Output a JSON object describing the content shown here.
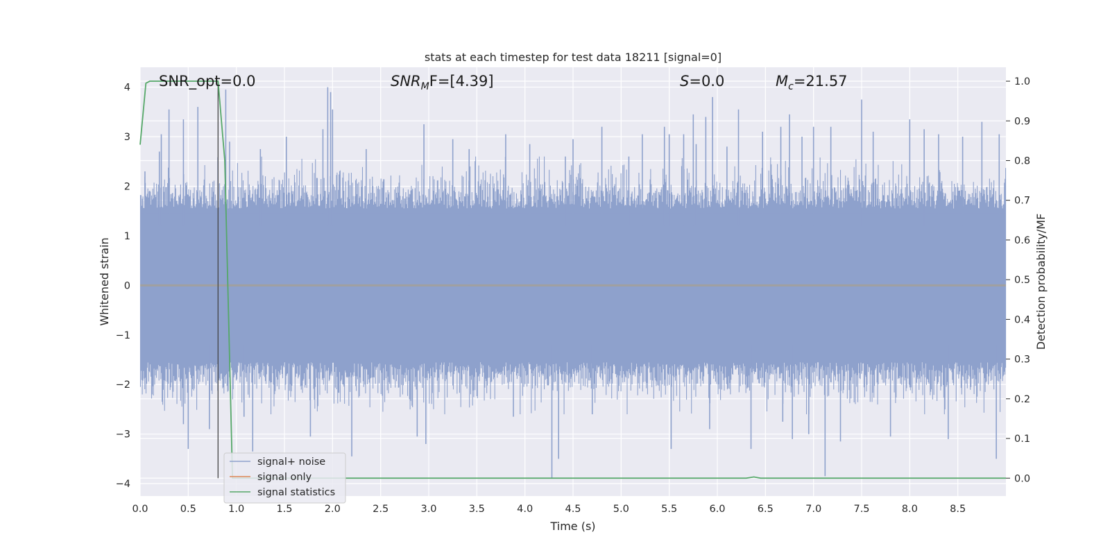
{
  "chart_data": {
    "type": "line",
    "title": "stats at each timestep for test data 18211 [signal=0]",
    "xlabel": "Time (s)",
    "ylabel": "Whitened strain",
    "ylabel_right": "Detection probability/MF",
    "xlim": [
      0.0,
      9.0
    ],
    "ylim": [
      -4.25,
      4.4
    ],
    "ylim_right": [
      -0.045,
      1.035
    ],
    "x_ticks": [
      "0.0",
      "0.5",
      "1.0",
      "1.5",
      "2.0",
      "2.5",
      "3.0",
      "3.5",
      "4.0",
      "4.5",
      "5.0",
      "5.5",
      "6.0",
      "6.5",
      "7.0",
      "7.5",
      "8.0",
      "8.5"
    ],
    "x_tick_values": [
      0.0,
      0.5,
      1.0,
      1.5,
      2.0,
      2.5,
      3.0,
      3.5,
      4.0,
      4.5,
      5.0,
      5.5,
      6.0,
      6.5,
      7.0,
      7.5,
      8.0,
      8.5
    ],
    "y_ticks": [
      "4",
      "3",
      "2",
      "1",
      "0",
      "−1",
      "−2",
      "−3",
      "−4"
    ],
    "y_tick_values": [
      4,
      3,
      2,
      1,
      0,
      -1,
      -2,
      -3,
      -4
    ],
    "y_ticks_right": [
      "1.0",
      "0.9",
      "0.8",
      "0.7",
      "0.6",
      "0.5",
      "0.4",
      "0.3",
      "0.2",
      "0.1",
      "0.0"
    ],
    "y_tick_values_right": [
      1.0,
      0.9,
      0.8,
      0.7,
      0.6,
      0.5,
      0.4,
      0.3,
      0.2,
      0.1,
      0.0
    ],
    "grid": true,
    "legend_position": "lower-left",
    "annotations": {
      "snr_opt": "SNR_opt=0.0",
      "snr_mf_base": "SNR",
      "snr_mf_sub": "M",
      "snr_mf_rest": "F=[4.39]",
      "s_label": "S",
      "s_rest": "=0.0",
      "mc_base": "M",
      "mc_sub": "c",
      "mc_rest": "=21.57"
    },
    "marker_line_x": 0.81,
    "series": [
      {
        "name": "signal+ noise",
        "color": "#8ea1cc",
        "axis": "left",
        "description_values": "dense noise, sampled at 2048 Hz, approx +/-1.5 typical, peaks between -3.9 and 4.0",
        "peaks": [
          [
            0.05,
            2.3
          ],
          [
            0.2,
            2.7
          ],
          [
            0.22,
            3.05
          ],
          [
            0.23,
            -2.35
          ],
          [
            0.3,
            3.55
          ],
          [
            0.45,
            -2.8
          ],
          [
            0.45,
            3.35
          ],
          [
            0.5,
            -3.3
          ],
          [
            0.6,
            3.6
          ],
          [
            0.72,
            -2.9
          ],
          [
            0.89,
            3.95
          ],
          [
            0.93,
            2.9
          ],
          [
            1.08,
            -2.65
          ],
          [
            1.17,
            -3.35
          ],
          [
            1.25,
            2.75
          ],
          [
            1.52,
            3.0
          ],
          [
            1.77,
            -3.05
          ],
          [
            1.9,
            3.15
          ],
          [
            1.95,
            4.0
          ],
          [
            1.98,
            3.9
          ],
          [
            2.0,
            3.55
          ],
          [
            2.2,
            -3.45
          ],
          [
            2.35,
            2.75
          ],
          [
            2.88,
            -3.05
          ],
          [
            2.95,
            3.25
          ],
          [
            2.97,
            -3.2
          ],
          [
            3.25,
            2.95
          ],
          [
            3.42,
            2.75
          ],
          [
            3.8,
            3.05
          ],
          [
            3.88,
            -2.65
          ],
          [
            4.05,
            2.85
          ],
          [
            4.28,
            -3.9
          ],
          [
            4.35,
            -3.5
          ],
          [
            4.42,
            2.6
          ],
          [
            4.5,
            2.95
          ],
          [
            4.7,
            -2.6
          ],
          [
            4.8,
            3.2
          ],
          [
            5.08,
            2.6
          ],
          [
            5.22,
            3.05
          ],
          [
            5.45,
            3.2
          ],
          [
            5.5,
            3.05
          ],
          [
            5.52,
            -3.3
          ],
          [
            5.65,
            3.05
          ],
          [
            5.75,
            3.45
          ],
          [
            5.78,
            2.85
          ],
          [
            5.88,
            3.4
          ],
          [
            5.92,
            -2.9
          ],
          [
            5.95,
            3.8
          ],
          [
            6.1,
            2.8
          ],
          [
            6.22,
            3.55
          ],
          [
            6.35,
            -3.3
          ],
          [
            6.47,
            3.1
          ],
          [
            6.66,
            3.2
          ],
          [
            6.68,
            -2.75
          ],
          [
            6.75,
            3.45
          ],
          [
            6.78,
            -3.1
          ],
          [
            6.88,
            3.0
          ],
          [
            6.95,
            -3.0
          ],
          [
            7.0,
            3.2
          ],
          [
            7.12,
            -3.85
          ],
          [
            7.18,
            3.2
          ],
          [
            7.28,
            -3.15
          ],
          [
            7.5,
            3.75
          ],
          [
            7.62,
            3.1
          ],
          [
            7.8,
            -3.05
          ],
          [
            8.0,
            3.35
          ],
          [
            8.15,
            3.15
          ],
          [
            8.3,
            3.05
          ],
          [
            8.4,
            -3.1
          ],
          [
            8.55,
            3.0
          ],
          [
            8.75,
            3.3
          ],
          [
            8.9,
            -3.5
          ],
          [
            8.93,
            3.05
          ]
        ]
      },
      {
        "name": "signal only",
        "color": "#dd8452",
        "axis": "left",
        "x": [
          0.0,
          9.0
        ],
        "y": [
          0.0,
          0.0
        ]
      },
      {
        "name": "signal statistics",
        "color": "#55a868",
        "axis": "right",
        "x": [
          0.0,
          0.06,
          0.1,
          0.2,
          0.4,
          0.6,
          0.81,
          0.88,
          0.93,
          0.96,
          1.0,
          2.0,
          3.0,
          4.0,
          5.0,
          6.0,
          6.3,
          6.38,
          6.45,
          7.0,
          8.0,
          9.0
        ],
        "y": [
          0.84,
          0.995,
          1.0,
          1.0,
          1.0,
          1.0,
          1.0,
          0.8,
          0.3,
          0.0,
          0.0,
          0.0,
          0.0,
          0.0,
          0.0,
          0.0,
          0.0,
          0.003,
          0.0,
          0.0,
          0.0,
          0.0
        ]
      }
    ]
  }
}
